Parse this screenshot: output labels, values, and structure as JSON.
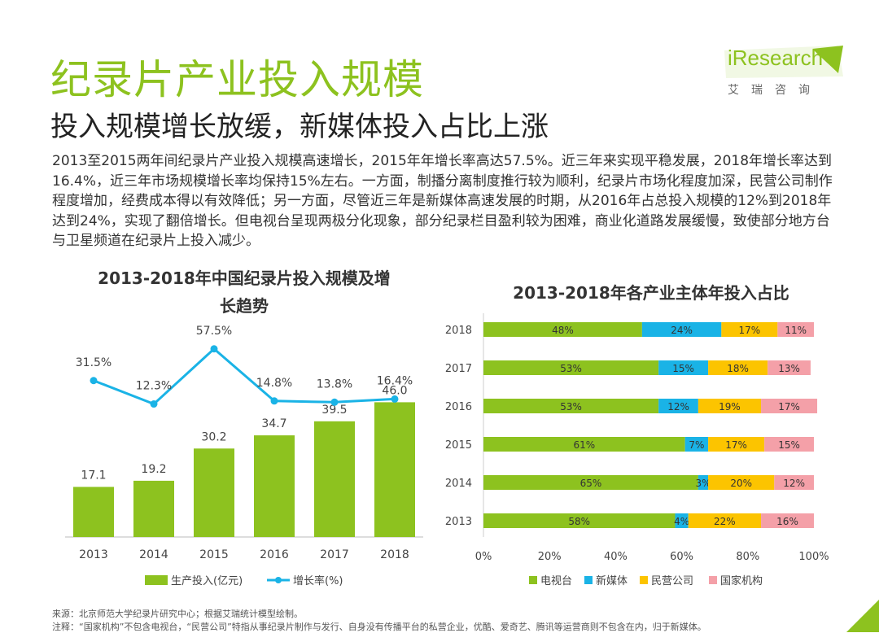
{
  "header": {
    "title": "纪录片产业投入规模",
    "subtitle": "投入规模增长放缓，新媒体投入占比上涨",
    "logo_brand": "iResearch",
    "logo_cn": "艾瑞咨询"
  },
  "paragraph": "2013至2015两年间纪录片产业投入规模高速增长，2015年年增长率高达57.5%。近三年来实现平稳发展，2018年增长率达到16.4%，近三年市场规模增长率均保持15%左右。一方面，制播分离制度推行较为顺利，纪录片市场化程度加深，民营公司制作程度增加，经费成本得以有效降低；另一方面，尽管近三年是新媒体高速发展的时期，从2016年占总投入规模的12%到2018年达到24%，实现了翻倍增长。但电视台呈现两极分化现象，部分纪录栏目盈利较为困难，商业化道路发展缓慢，致使部分地方台与卫星频道在纪录片上投入减少。",
  "chart_titles": {
    "left_line1": "2013-2018年中国纪录片投入规模及增",
    "left_line2": "长趋势",
    "right": "2013-2018年各产业主体年投入占比"
  },
  "chart_data": [
    {
      "type": "bar",
      "title": "2013-2018年中国纪录片投入规模及增长趋势",
      "categories": [
        "2013",
        "2014",
        "2015",
        "2016",
        "2017",
        "2018"
      ],
      "series": [
        {
          "name": "生产投入(亿元)",
          "kind": "bar",
          "values": [
            17.1,
            19.2,
            30.2,
            34.7,
            39.5,
            46.0
          ],
          "labels": [
            "17.1",
            "19.2",
            "30.2",
            "34.7",
            "39.5",
            "46.0"
          ],
          "color": "#8dc21f"
        },
        {
          "name": "增长率(%)",
          "kind": "line",
          "values": [
            31.5,
            12.3,
            57.5,
            14.8,
            13.8,
            16.4
          ],
          "labels": [
            "31.5%",
            "12.3%",
            "57.5%",
            "14.8%",
            "13.8%",
            "16.4%"
          ],
          "color": "#1ab3e6"
        }
      ],
      "legend": [
        "生产投入(亿元)",
        "增长率(%)"
      ],
      "ylim": [
        0,
        50
      ],
      "y2lim": [
        0,
        70
      ]
    },
    {
      "type": "bar",
      "orientation": "horizontal-stacked-100",
      "title": "2013-2018年各产业主体年投入占比",
      "categories": [
        "2018",
        "2017",
        "2016",
        "2015",
        "2014",
        "2013"
      ],
      "series": [
        {
          "name": "电视台",
          "values": [
            48,
            53,
            53,
            61,
            65,
            58
          ],
          "color": "#8dc21f"
        },
        {
          "name": "新媒体",
          "values": [
            24,
            15,
            12,
            7,
            3,
            4
          ],
          "color": "#1ab3e6"
        },
        {
          "name": "民营公司",
          "values": [
            17,
            18,
            19,
            17,
            20,
            22
          ],
          "color": "#fcc400"
        },
        {
          "name": "国家机构",
          "values": [
            11,
            13,
            17,
            15,
            12,
            16
          ],
          "color": "#f4a0a8"
        }
      ],
      "xticks": [
        "0%",
        "20%",
        "40%",
        "60%",
        "80%",
        "100%"
      ],
      "xlim": [
        0,
        100
      ]
    }
  ],
  "footer": {
    "source": "来源：北京师范大学纪录片研究中心；根据艾瑞统计模型绘制。",
    "note": "注释：“国家机构”不包含电视台，“民营公司”特指从事纪录片制作与发行、自身没有传播平台的私营企业，优酷、爱奇艺、腾讯等运营商则不包含在内，归于新媒体。"
  }
}
